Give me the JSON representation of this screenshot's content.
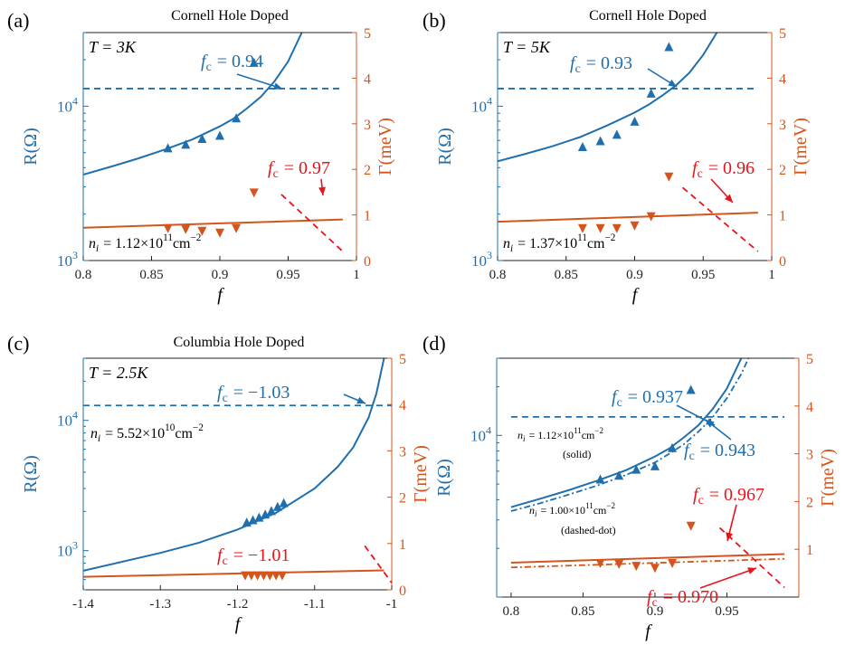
{
  "colors": {
    "blue": "#1f6fae",
    "orange": "#d4541c",
    "red": "#e8141c",
    "axis": "#1f6fae",
    "black": "#000000"
  },
  "chart_data": [
    {
      "panel": "(a)",
      "type": "scatter",
      "title": "Cornell Hole Doped",
      "xlabel": "f",
      "ylabel_left": "R(Ω)",
      "ylabel_right": "Γ(meV)",
      "xlim": [
        0.8,
        1.0
      ],
      "xticks": [
        "0.8",
        "0.85",
        "0.9",
        "0.95",
        "1"
      ],
      "xtick_values": [
        0.8,
        0.85,
        0.9,
        0.95,
        1.0
      ],
      "ylim_left_log": [
        1000,
        30000
      ],
      "yticks_left": [
        {
          "value": 1000,
          "base": "10",
          "exp": "3"
        },
        {
          "value": 10000,
          "base": "10",
          "exp": "4"
        }
      ],
      "ylim_right": [
        0,
        5
      ],
      "yticks_right": [
        "0",
        "1",
        "2",
        "3",
        "4",
        "5"
      ],
      "annotations": [
        "T = 3K",
        "f_c = 0.94",
        "f_c = 0.97",
        "n_i = 1.12×10^11 cm^−2"
      ],
      "label_T": "T = 3K",
      "label_fc_blue": "= 0.94",
      "label_fc_red": "= 0.97",
      "label_ni": "= 1.12×10",
      "label_ni_exp": "11",
      "label_ni_unit": "cm",
      "label_ni_unit_exp": "−2",
      "series": [
        {
          "kind": "R_points",
          "axis": "left",
          "marker": "up",
          "x": [
            0.862,
            0.875,
            0.887,
            0.9,
            0.912,
            0.925
          ],
          "y": [
            5300,
            5600,
            6100,
            6400,
            8300,
            19000
          ]
        },
        {
          "kind": "R_fit",
          "axis": "left",
          "style": "solid",
          "x": [
            0.8,
            0.82,
            0.84,
            0.86,
            0.88,
            0.9,
            0.91,
            0.92,
            0.93,
            0.94,
            0.95,
            0.96
          ],
          "y": [
            3600,
            4050,
            4580,
            5250,
            6100,
            7400,
            8300,
            9700,
            11500,
            14500,
            19500,
            30000
          ]
        },
        {
          "kind": "R_c",
          "axis": "left",
          "style": "dashed",
          "x": [
            0.8,
            0.99
          ],
          "y": [
            13000,
            13000
          ]
        },
        {
          "kind": "G_points",
          "axis": "right",
          "marker": "down",
          "x": [
            0.862,
            0.875,
            0.887,
            0.9,
            0.912,
            0.925
          ],
          "y": [
            0.72,
            0.7,
            0.66,
            0.62,
            0.72,
            1.5
          ]
        },
        {
          "kind": "G_fit",
          "axis": "right",
          "style": "solid",
          "x": [
            0.8,
            0.99
          ],
          "y": [
            0.72,
            0.9
          ]
        },
        {
          "kind": "G_c",
          "axis": "right",
          "style": "dashed",
          "x": [
            0.945,
            0.99
          ],
          "y": [
            1.45,
            0.2
          ]
        }
      ]
    },
    {
      "panel": "(b)",
      "type": "scatter",
      "title": "Cornell Hole Doped",
      "xlabel": "f",
      "ylabel_left": "R(Ω)",
      "ylabel_right": "Γ(meV)",
      "xlim": [
        0.8,
        1.0
      ],
      "xticks": [
        "0.8",
        "0.85",
        "0.9",
        "0.95",
        "1"
      ],
      "xtick_values": [
        0.8,
        0.85,
        0.9,
        0.95,
        1.0
      ],
      "ylim_left_log": [
        1000,
        30000
      ],
      "yticks_left": [
        {
          "value": 1000,
          "base": "10",
          "exp": "3"
        },
        {
          "value": 10000,
          "base": "10",
          "exp": "4"
        }
      ],
      "ylim_right": [
        0,
        5
      ],
      "yticks_right": [
        "0",
        "1",
        "2",
        "3",
        "4",
        "5"
      ],
      "annotations": [
        "T = 5K",
        "f_c = 0.93",
        "f_c = 0.96",
        "n_i = 1.37×10^11 cm^−2"
      ],
      "label_T": "T = 5K",
      "label_fc_blue": "= 0.93",
      "label_fc_red": "= 0.96",
      "label_ni": "= 1.37×10",
      "label_ni_exp": "11",
      "label_ni_unit": "cm",
      "label_ni_unit_exp": "−2",
      "series": [
        {
          "kind": "R_points",
          "axis": "left",
          "marker": "up",
          "x": [
            0.862,
            0.875,
            0.887,
            0.9,
            0.912,
            0.925
          ],
          "y": [
            5400,
            5900,
            6500,
            7900,
            12000,
            24000
          ]
        },
        {
          "kind": "R_fit",
          "axis": "left",
          "style": "solid",
          "x": [
            0.8,
            0.82,
            0.84,
            0.86,
            0.88,
            0.9,
            0.91,
            0.92,
            0.93,
            0.94,
            0.95,
            0.96
          ],
          "y": [
            4400,
            4900,
            5500,
            6300,
            7500,
            9100,
            10200,
            11700,
            13600,
            16500,
            21500,
            30000
          ]
        },
        {
          "kind": "R_c",
          "axis": "left",
          "style": "dashed",
          "x": [
            0.8,
            0.99
          ],
          "y": [
            13000,
            13000
          ]
        },
        {
          "kind": "G_points",
          "axis": "right",
          "marker": "down",
          "x": [
            0.862,
            0.875,
            0.887,
            0.9,
            0.912,
            0.925
          ],
          "y": [
            0.72,
            0.72,
            0.72,
            0.78,
            0.98,
            1.85
          ]
        },
        {
          "kind": "G_fit",
          "axis": "right",
          "style": "solid",
          "x": [
            0.8,
            0.99
          ],
          "y": [
            0.85,
            1.05
          ]
        },
        {
          "kind": "G_c",
          "axis": "right",
          "style": "dashed",
          "x": [
            0.935,
            0.99
          ],
          "y": [
            1.6,
            0.2
          ]
        }
      ]
    },
    {
      "panel": "(c)",
      "type": "scatter",
      "title": "Columbia Hole Doped",
      "xlabel": "f",
      "ylabel_left": "R(Ω)",
      "ylabel_right": "Γ(meV)",
      "xlim": [
        -1.4,
        -1.0
      ],
      "xticks": [
        "-1.4",
        "-1.3",
        "-1.2",
        "-1.1",
        "-1"
      ],
      "xtick_values": [
        -1.4,
        -1.3,
        -1.2,
        -1.1,
        -1.0
      ],
      "ylim_left_log": [
        500,
        30000
      ],
      "yticks_left": [
        {
          "value": 1000,
          "base": "10",
          "exp": "3"
        },
        {
          "value": 10000,
          "base": "10",
          "exp": "4"
        }
      ],
      "ylim_right": [
        0,
        5
      ],
      "yticks_right": [
        "0",
        "1",
        "2",
        "3",
        "4",
        "5"
      ],
      "annotations": [
        "T = 2.5K",
        "f_c = −1.03",
        "f_c = −1.01",
        "n_i = 5.52×10^10 cm^−2"
      ],
      "label_T": "T = 2.5K",
      "label_fc_blue": "= −1.03",
      "label_fc_red": "= −1.01",
      "label_ni": "= 5.52×10",
      "label_ni_exp": "10",
      "label_ni_unit": "cm",
      "label_ni_unit_exp": "−2",
      "series": [
        {
          "kind": "R_points",
          "axis": "left",
          "marker": "up",
          "x": [
            -1.188,
            -1.18,
            -1.172,
            -1.164,
            -1.156,
            -1.148,
            -1.14
          ],
          "y": [
            1630,
            1700,
            1780,
            1880,
            2000,
            2150,
            2300
          ]
        },
        {
          "kind": "R_fit",
          "axis": "left",
          "style": "solid",
          "x": [
            -1.4,
            -1.35,
            -1.3,
            -1.25,
            -1.2,
            -1.15,
            -1.1,
            -1.07,
            -1.05,
            -1.03,
            -1.02,
            -1.01
          ],
          "y": [
            700,
            820,
            960,
            1150,
            1450,
            1950,
            3000,
            4400,
            6200,
            10500,
            16000,
            30000
          ]
        },
        {
          "kind": "R_c",
          "axis": "left",
          "style": "dashed",
          "x": [
            -1.4,
            -1.0
          ],
          "y": [
            13000,
            13000
          ]
        },
        {
          "kind": "G_points",
          "axis": "right",
          "marker": "down",
          "x": [
            -1.19,
            -1.182,
            -1.174,
            -1.166,
            -1.158,
            -1.15,
            -1.142
          ],
          "y": [
            0.32,
            0.32,
            0.32,
            0.32,
            0.32,
            0.32,
            0.32
          ]
        },
        {
          "kind": "G_fit",
          "axis": "right",
          "style": "solid",
          "x": [
            -1.4,
            -1.01
          ],
          "y": [
            0.28,
            0.42
          ]
        },
        {
          "kind": "G_c",
          "axis": "right",
          "style": "dashed",
          "x": [
            -1.035,
            -1.0
          ],
          "y": [
            0.95,
            0.15
          ]
        }
      ]
    },
    {
      "panel": "(d)",
      "type": "scatter",
      "title": "",
      "xlabel": "f",
      "ylabel_left": "R(Ω)",
      "ylabel_right": "Γ(meV)",
      "xlim": [
        0.79,
        1.0
      ],
      "xticks": [
        "0.8",
        "0.85",
        "0.9",
        "0.95"
      ],
      "xtick_values": [
        0.8,
        0.85,
        0.9,
        0.95
      ],
      "ylim_left_log": [
        1000,
        30000
      ],
      "yticks_left": [
        {
          "value": 10000,
          "base": "10",
          "exp": "4"
        }
      ],
      "ylim_right": [
        0,
        5
      ],
      "yticks_right": [
        "1",
        "2",
        "3",
        "4",
        "5"
      ],
      "annotations": [
        "f_c = 0.937",
        "f_c = 0.943",
        "f_c = 0.967",
        "f_c = 0.970",
        "n_i = 1.12×10^11 cm^−2 (solid)",
        "n_i = 1.00×10^11 cm^−2 (dashed-dot)"
      ],
      "label_fc_blue": "= 0.937",
      "label_fc_blue2": "= 0.943",
      "label_fc_red": "= 0.967",
      "label_fc_red2": "= 0.970",
      "label_ni_solid": "= 1.12×10",
      "label_ni_solid_exp": "11",
      "label_ni_dd": "= 1.00×10",
      "label_ni_dd_exp": "11",
      "label_ni_unit": "cm",
      "label_ni_unit_exp": "−2",
      "label_solid": "(solid)",
      "label_dd": "(dashed-dot)",
      "series": [
        {
          "kind": "R_points",
          "axis": "left",
          "marker": "up",
          "x": [
            0.862,
            0.875,
            0.887,
            0.9,
            0.912,
            0.925
          ],
          "y": [
            5300,
            5600,
            6100,
            6400,
            8300,
            19000
          ]
        },
        {
          "kind": "R_fit",
          "axis": "left",
          "style": "solid",
          "x": [
            0.8,
            0.82,
            0.84,
            0.86,
            0.88,
            0.9,
            0.91,
            0.92,
            0.93,
            0.94,
            0.95,
            0.96
          ],
          "y": [
            3600,
            4050,
            4580,
            5250,
            6100,
            7400,
            8300,
            9700,
            11500,
            14500,
            19500,
            30000
          ]
        },
        {
          "kind": "R_fit_dd",
          "axis": "left",
          "style": "dashdot",
          "x": [
            0.8,
            0.82,
            0.84,
            0.86,
            0.88,
            0.9,
            0.91,
            0.92,
            0.93,
            0.94,
            0.95,
            0.96,
            0.965
          ],
          "y": [
            3400,
            3800,
            4300,
            4900,
            5700,
            6800,
            7700,
            8800,
            10500,
            12900,
            17000,
            24000,
            30000
          ]
        },
        {
          "kind": "R_c",
          "axis": "left",
          "style": "dashed",
          "x": [
            0.8,
            0.99
          ],
          "y": [
            13000,
            13000
          ]
        },
        {
          "kind": "G_points",
          "axis": "right",
          "marker": "down",
          "x": [
            0.862,
            0.875,
            0.887,
            0.9,
            0.912,
            0.925
          ],
          "y": [
            0.72,
            0.7,
            0.66,
            0.62,
            0.72,
            1.5
          ]
        },
        {
          "kind": "G_fit",
          "axis": "right",
          "style": "solid",
          "x": [
            0.8,
            0.99
          ],
          "y": [
            0.72,
            0.9
          ]
        },
        {
          "kind": "G_fit_dd",
          "axis": "right",
          "style": "dashdot",
          "x": [
            0.8,
            0.99
          ],
          "y": [
            0.62,
            0.8
          ]
        },
        {
          "kind": "G_c",
          "axis": "right",
          "style": "dashed",
          "x": [
            0.945,
            0.99
          ],
          "y": [
            1.45,
            0.2
          ]
        }
      ]
    }
  ]
}
